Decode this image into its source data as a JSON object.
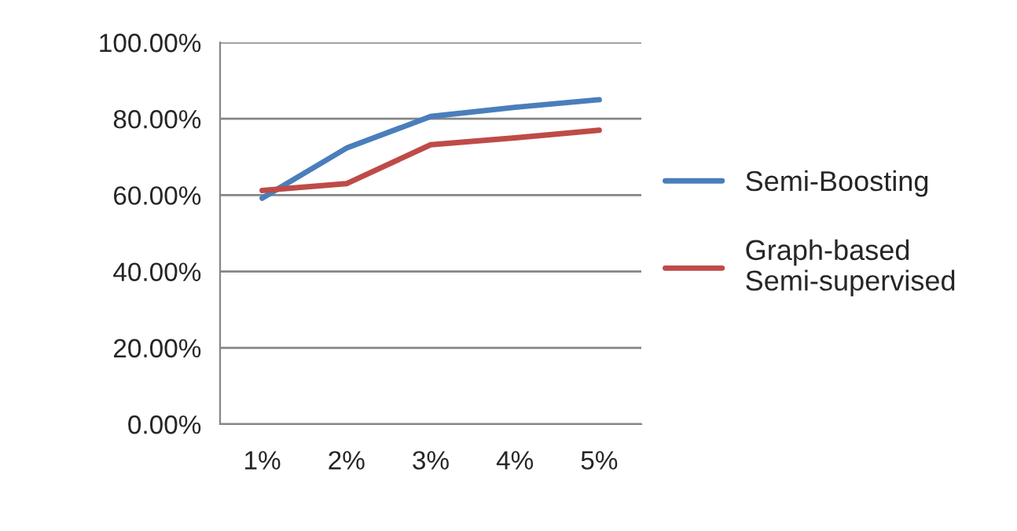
{
  "chart_data": {
    "type": "line",
    "categories": [
      "1%",
      "2%",
      "3%",
      "4%",
      "5%"
    ],
    "series": [
      {
        "name": "Semi-Boosting",
        "color": "#4a7ebb",
        "values": [
          59.2,
          72.3,
          80.6,
          83,
          85
        ]
      },
      {
        "name": "Graph-based\nSemi-supervised",
        "color": "#be4b48",
        "values": [
          61.2,
          63,
          73.2,
          75,
          77
        ]
      }
    ],
    "ylim": [
      0,
      100
    ],
    "yticks": [
      {
        "value": 0,
        "label": "0.00%"
      },
      {
        "value": 20,
        "label": "20.00%"
      },
      {
        "value": 40,
        "label": "40.00%"
      },
      {
        "value": 60,
        "label": "60.00%"
      },
      {
        "value": 80,
        "label": "80.00%"
      },
      {
        "value": 100,
        "label": "100.00%"
      }
    ],
    "grid": "y",
    "legend": "right",
    "marker": "none",
    "line_style": "solid"
  }
}
